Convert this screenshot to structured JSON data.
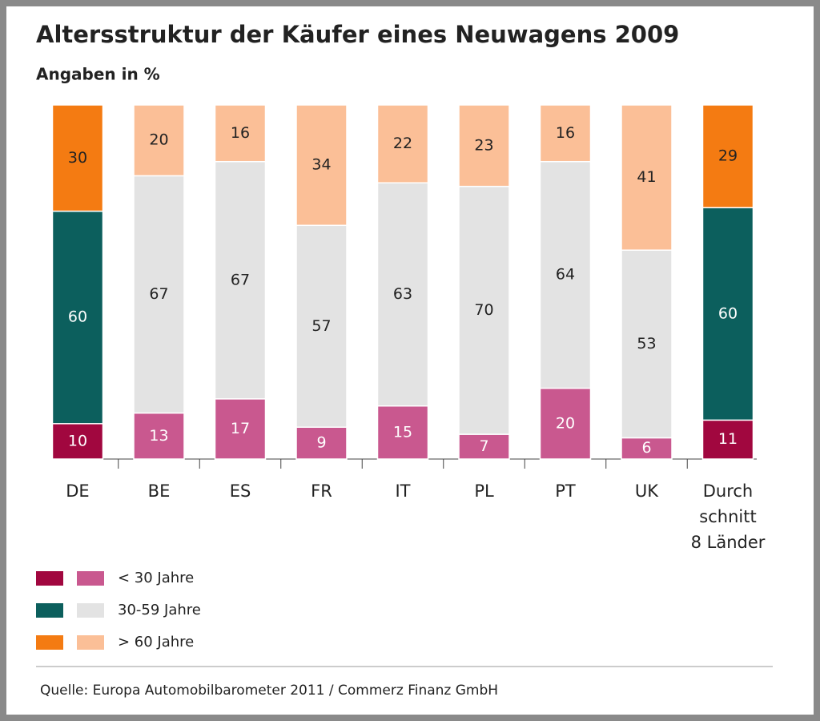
{
  "chart_data": {
    "type": "stacked_bar",
    "title": "Altersstruktur der Käufer eines Neuwagens 2009",
    "subtitle": "Angaben in %",
    "categories": [
      "DE",
      "BE",
      "ES",
      "FR",
      "IT",
      "PL",
      "PT",
      "UK",
      "Durch\nschnitt\n8 Länder"
    ],
    "series": [
      {
        "name": "< 30 Jahre",
        "values": [
          10,
          13,
          17,
          9,
          15,
          7,
          20,
          6,
          11
        ],
        "colors": [
          "#a1073f",
          "#c9588f",
          "#c9588f",
          "#c9588f",
          "#c9588f",
          "#c9588f",
          "#c9588f",
          "#c9588f",
          "#a1073f"
        ]
      },
      {
        "name": "30-59 Jahre",
        "values": [
          60,
          67,
          67,
          57,
          63,
          70,
          64,
          53,
          60
        ],
        "colors": [
          "#0c5f5d",
          "#e3e3e3",
          "#e3e3e3",
          "#e3e3e3",
          "#e3e3e3",
          "#e3e3e3",
          "#e3e3e3",
          "#e3e3e3",
          "#0c5f5d"
        ]
      },
      {
        "name": "> 60 Jahre",
        "values": [
          30,
          20,
          16,
          34,
          22,
          23,
          16,
          41,
          29
        ],
        "colors": [
          "#f47b12",
          "#fbbf97",
          "#fbbf97",
          "#fbbf97",
          "#fbbf97",
          "#fbbf97",
          "#fbbf97",
          "#fbbf97",
          "#f47b12"
        ]
      }
    ],
    "ylim": [
      0,
      100
    ],
    "source": "Quelle: Europa Automobilbarometer 2011 / Commerz Finanz GmbH"
  }
}
